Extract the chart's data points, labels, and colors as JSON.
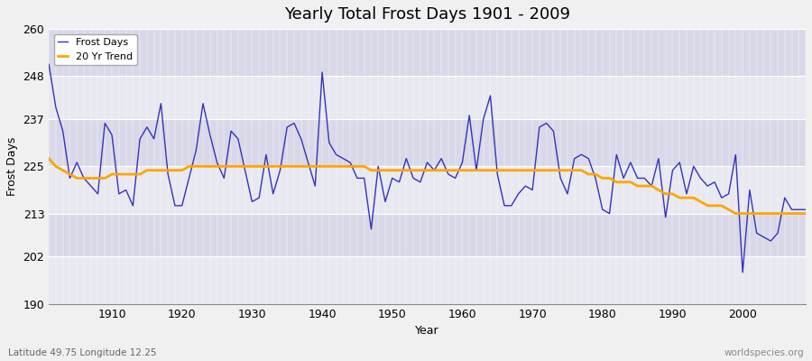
{
  "title": "Yearly Total Frost Days 1901 - 2009",
  "xlabel": "Year",
  "ylabel": "Frost Days",
  "xlim": [
    1901,
    2009
  ],
  "ylim": [
    190,
    260
  ],
  "yticks": [
    190,
    202,
    213,
    225,
    237,
    248,
    260
  ],
  "xticks": [
    1910,
    1920,
    1930,
    1940,
    1950,
    1960,
    1970,
    1980,
    1990,
    2000
  ],
  "frost_days_line_color": "#3333bb",
  "trend_line_color": "#FFA500",
  "bg_color": "#e8e8f0",
  "plot_bg_color": "#e0e0ea",
  "band_color_light": "#dcdce8",
  "band_color_dark": "#d0d0de",
  "legend_labels": [
    "Frost Days",
    "20 Yr Trend"
  ],
  "bottom_left_text": "Latitude 49.75 Longitude 12.25",
  "bottom_right_text": "worldspecies.org",
  "years": [
    1901,
    1902,
    1903,
    1904,
    1905,
    1906,
    1907,
    1908,
    1909,
    1910,
    1911,
    1912,
    1913,
    1914,
    1915,
    1916,
    1917,
    1918,
    1919,
    1920,
    1921,
    1922,
    1923,
    1924,
    1925,
    1926,
    1927,
    1928,
    1929,
    1930,
    1931,
    1932,
    1933,
    1934,
    1935,
    1936,
    1937,
    1938,
    1939,
    1940,
    1941,
    1942,
    1943,
    1944,
    1945,
    1946,
    1947,
    1948,
    1949,
    1950,
    1951,
    1952,
    1953,
    1954,
    1955,
    1956,
    1957,
    1958,
    1959,
    1960,
    1961,
    1962,
    1963,
    1964,
    1965,
    1966,
    1967,
    1968,
    1969,
    1970,
    1971,
    1972,
    1973,
    1974,
    1975,
    1976,
    1977,
    1978,
    1979,
    1980,
    1981,
    1982,
    1983,
    1984,
    1985,
    1986,
    1987,
    1988,
    1989,
    1990,
    1991,
    1992,
    1993,
    1994,
    1995,
    1996,
    1997,
    1998,
    1999,
    2000,
    2001,
    2002,
    2003,
    2004,
    2005,
    2006,
    2007,
    2008,
    2009
  ],
  "frost_values": [
    251,
    240,
    234,
    222,
    226,
    222,
    220,
    218,
    236,
    233,
    218,
    219,
    215,
    232,
    235,
    232,
    241,
    223,
    215,
    215,
    222,
    229,
    241,
    233,
    226,
    222,
    234,
    232,
    224,
    216,
    217,
    228,
    218,
    224,
    235,
    236,
    232,
    226,
    220,
    249,
    231,
    228,
    227,
    226,
    222,
    222,
    209,
    225,
    216,
    222,
    221,
    227,
    222,
    221,
    226,
    224,
    227,
    223,
    222,
    226,
    238,
    224,
    237,
    243,
    223,
    215,
    215,
    218,
    220,
    219,
    235,
    236,
    234,
    222,
    218,
    227,
    228,
    227,
    222,
    214,
    213,
    228,
    222,
    226,
    222,
    222,
    220,
    227,
    212,
    224,
    226,
    218,
    225,
    222,
    220,
    221,
    217,
    218,
    228,
    198,
    219,
    208,
    207,
    206,
    208,
    217,
    214,
    214,
    214
  ],
  "trend_values": [
    227,
    225,
    224,
    223,
    222,
    222,
    222,
    222,
    222,
    223,
    223,
    223,
    223,
    223,
    224,
    224,
    224,
    224,
    224,
    224,
    225,
    225,
    225,
    225,
    225,
    225,
    225,
    225,
    225,
    225,
    225,
    225,
    225,
    225,
    225,
    225,
    225,
    225,
    225,
    225,
    225,
    225,
    225,
    225,
    225,
    225,
    224,
    224,
    224,
    224,
    224,
    224,
    224,
    224,
    224,
    224,
    224,
    224,
    224,
    224,
    224,
    224,
    224,
    224,
    224,
    224,
    224,
    224,
    224,
    224,
    224,
    224,
    224,
    224,
    224,
    224,
    224,
    223,
    223,
    222,
    222,
    221,
    221,
    221,
    220,
    220,
    220,
    219,
    218,
    218,
    217,
    217,
    217,
    216,
    215,
    215,
    215,
    214,
    213,
    213,
    213,
    213,
    213,
    213,
    213,
    213,
    213,
    213,
    213
  ]
}
